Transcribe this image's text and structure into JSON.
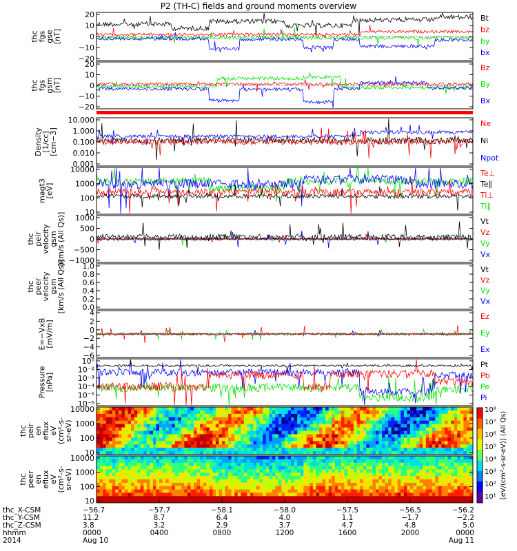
{
  "title": "P2 (TH-C) fields and ground moments overview",
  "colors": {
    "black": "#000000",
    "red": "#ff0000",
    "green": "#00e000",
    "blue": "#0000ff"
  },
  "panels": [
    {
      "id": "fgs-gse",
      "ylabel": [
        "thc",
        "fgs",
        "gse",
        "[nT]"
      ],
      "ticks": [
        "20",
        "10",
        "0",
        "−10",
        "−20"
      ],
      "ymin": -20,
      "ymax": 20,
      "legend": [
        {
          "label": "Bt",
          "color": "black"
        },
        {
          "label": "bz",
          "color": "red"
        },
        {
          "label": "by",
          "color": "green"
        },
        {
          "label": "bx",
          "color": "blue"
        }
      ]
    },
    {
      "id": "fgs-gsm",
      "ylabel": [
        "thc",
        "fgs",
        "gsm",
        "[nT]"
      ],
      "ticks": [
        "20",
        "10",
        "0",
        "−10",
        "−20"
      ],
      "ymin": -25,
      "ymax": 25,
      "legend": [
        {
          "label": "Bz",
          "color": "red"
        },
        {
          "label": "By",
          "color": "green"
        },
        {
          "label": "Bx",
          "color": "blue"
        }
      ]
    },
    {
      "id": "density",
      "ylabel": [
        "Density",
        "[1/cc]",
        "[cm−3]"
      ],
      "ticks": [
        "10.000",
        "1.000",
        "0.100",
        "0.010",
        "0.001"
      ],
      "log": true,
      "legend": [
        {
          "label": "Ne",
          "color": "red"
        },
        {
          "label": "Ni",
          "color": "black"
        },
        {
          "label": "Npot",
          "color": "blue"
        }
      ]
    },
    {
      "id": "temp",
      "ylabel": [
        "magt3",
        "[eV]"
      ],
      "ticks": [
        "10000",
        "1000",
        "100",
        "10"
      ],
      "log": true,
      "legend": [
        {
          "label": "Te⊥",
          "color": "red"
        },
        {
          "label": "Te∥",
          "color": "black"
        },
        {
          "label": "Ti⊥",
          "color": "red"
        },
        {
          "label": "Ti∥",
          "color": "green"
        }
      ]
    },
    {
      "id": "peir-vel",
      "ylabel": [
        "thc",
        "peir",
        "velocity",
        "gsm",
        "[km/s (All Qs)]"
      ],
      "ticks": [
        "1000",
        "500",
        "0",
        "−500",
        "−1000"
      ],
      "ymin": -1000,
      "ymax": 1000,
      "legend": [
        {
          "label": "Vt",
          "color": "black"
        },
        {
          "label": "Vz",
          "color": "red"
        },
        {
          "label": "Vy",
          "color": "green"
        },
        {
          "label": "Vx",
          "color": "blue"
        }
      ]
    },
    {
      "id": "peer-vel",
      "ylabel": [
        "thc",
        "peer",
        "velocity",
        "gsm",
        "[km/s (All Qs)]"
      ],
      "ticks": [
        "1.0",
        "0.8",
        "0.6",
        "0.4",
        "0.2",
        "0.0"
      ],
      "ymin": 0,
      "ymax": 1,
      "legend": [
        {
          "label": "Vt",
          "color": "black"
        },
        {
          "label": "Vz",
          "color": "red"
        },
        {
          "label": "Vy",
          "color": "green"
        },
        {
          "label": "Vx",
          "color": "blue"
        }
      ]
    },
    {
      "id": "efield",
      "ylabel": [
        "E=−VxB",
        "[mV/m]"
      ],
      "ticks": [
        "4",
        "2",
        "0",
        "−2",
        "−4",
        "−6"
      ],
      "ymin": -6,
      "ymax": 6,
      "legend": [
        {
          "label": "Ez",
          "color": "red"
        },
        {
          "label": "Ey",
          "color": "green"
        },
        {
          "label": "Ex",
          "color": "blue"
        }
      ]
    },
    {
      "id": "pressure",
      "ylabel": [
        "Pressure",
        "[nPa]"
      ],
      "ticks": [
        "10⁰",
        "10⁻²",
        "10⁻³",
        "10⁻⁴",
        "10⁻⁵",
        "10⁻⁶"
      ],
      "log": true,
      "legend": [
        {
          "label": "Pt",
          "color": "black"
        },
        {
          "label": "Pb",
          "color": "red"
        },
        {
          "label": "Pe",
          "color": "green"
        },
        {
          "label": "Pi",
          "color": "blue"
        }
      ]
    },
    {
      "id": "peir-spec",
      "ylabel": [
        "thc",
        "peir",
        "en",
        "eflux",
        "eV",
        "(cm²-s-",
        "sr-eV)"
      ],
      "ticks": [
        "10000",
        "1000",
        "100",
        "10"
      ],
      "spectrogram": true
    },
    {
      "id": "peer-spec",
      "ylabel": [
        "thc",
        "peer",
        "en",
        "eflux",
        "eV",
        "(cm²-s-",
        "sr-eV)"
      ],
      "ticks": [
        "10000",
        "1000",
        "100",
        "10"
      ],
      "spectrogram": true
    }
  ],
  "colorbar": {
    "label": "[eV/(cm²-s-sr-eV)] (All Qs)",
    "ticks": [
      "10⁸",
      "10⁷",
      "10⁶",
      "10⁵",
      "10⁴",
      "10³",
      "10²",
      "10¹"
    ]
  },
  "xaxis": {
    "row_labels": [
      "thc_X-CSM",
      "thc_Y-CSM",
      "thc_Z-CSM",
      "hhmm",
      "2014"
    ],
    "columns": [
      [
        "−56.7",
        "11.2",
        "3.8",
        "0000",
        "Aug 10"
      ],
      [
        "−57.7",
        "8.7",
        "3.2",
        "0400",
        ""
      ],
      [
        "−58.1",
        "6.4",
        "2.9",
        "0800",
        ""
      ],
      [
        "−58.0",
        "4.0",
        "3.7",
        "1200",
        ""
      ],
      [
        "−57.5",
        "1.1",
        "4.7",
        "1600",
        ""
      ],
      [
        "−56.5",
        "−1.7",
        "4.8",
        "2000",
        ""
      ],
      [
        "−56.2",
        "−2.2",
        "5.0",
        "0000",
        "Aug 11"
      ]
    ]
  }
}
